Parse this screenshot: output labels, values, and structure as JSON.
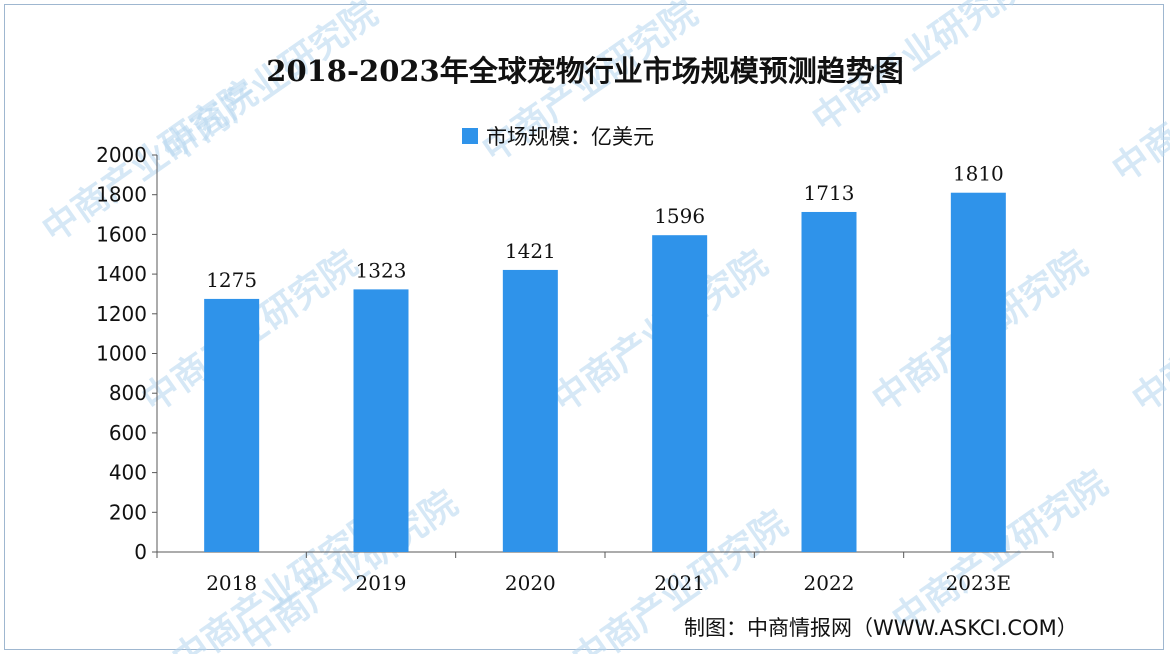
{
  "chart_data": {
    "type": "bar",
    "title": "2018-2023年全球宠物行业市场规模预测趋势图",
    "categories": [
      "2018",
      "2019",
      "2020",
      "2021",
      "2022",
      "2023E"
    ],
    "series": [
      {
        "name": "市场规模：亿美元",
        "values": [
          1275,
          1323,
          1421,
          1596,
          1713,
          1810
        ]
      }
    ],
    "data_labels": [
      "1275",
      "1323",
      "1421",
      "1596",
      "1713",
      "1810"
    ],
    "ylim": [
      0,
      2000
    ],
    "yticks": [
      0,
      200,
      400,
      600,
      800,
      1000,
      1200,
      1400,
      1600,
      1800,
      2000
    ],
    "xlabel": "",
    "ylabel": "",
    "grid": false,
    "legend_position": "top-center",
    "bar_color": "#2f93ea"
  },
  "credit": "制图：中商情报网（WWW.ASKCI.COM）",
  "watermark": "中商产业研究院"
}
